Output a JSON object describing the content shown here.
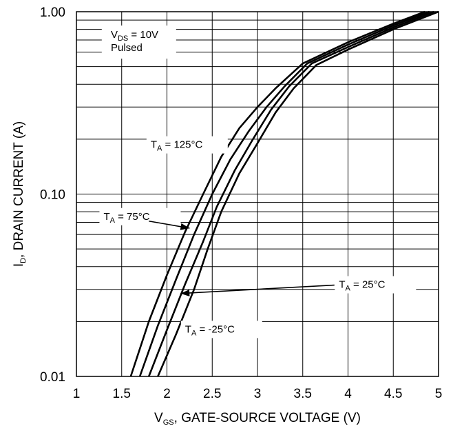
{
  "chart_data": {
    "type": "line",
    "xlabel": {
      "main": "V",
      "sub": "GS",
      "rest": ", GATE-SOURCE VOLTAGE (V)"
    },
    "ylabel": {
      "main": "I",
      "sub": "D",
      "rest": ", DRAIN CURRENT (A)"
    },
    "xlim": [
      1,
      5
    ],
    "ylim": [
      0.01,
      1.0
    ],
    "yscale": "log",
    "grid": true,
    "x_ticks": [
      1,
      1.5,
      2,
      2.5,
      3,
      3.5,
      4,
      4.5,
      5
    ],
    "x_tick_labels": [
      "1",
      "1.5",
      "2",
      "2.5",
      "3",
      "3.5",
      "4",
      "4.5",
      "5"
    ],
    "y_ticks": [
      0.01,
      0.1,
      1.0
    ],
    "y_tick_labels": [
      "0.01",
      "0.10",
      "1.00"
    ],
    "conditions": [
      {
        "main": "V",
        "sub": "DS",
        "rest": " = 10V"
      },
      {
        "main": "Pulsed",
        "sub": "",
        "rest": ""
      }
    ],
    "series": [
      {
        "name": {
          "main": "T",
          "sub": "A",
          "rest": " = 125°C"
        },
        "points": [
          [
            1.6,
            0.01
          ],
          [
            1.8,
            0.02
          ],
          [
            2.0,
            0.036
          ],
          [
            2.2,
            0.062
          ],
          [
            2.4,
            0.1
          ],
          [
            2.6,
            0.16
          ],
          [
            2.8,
            0.23
          ],
          [
            3.0,
            0.3
          ],
          [
            3.2,
            0.38
          ],
          [
            3.5,
            0.52
          ],
          [
            4.0,
            0.68
          ],
          [
            4.5,
            0.86
          ],
          [
            4.85,
            1.0
          ]
        ]
      },
      {
        "name": {
          "main": "T",
          "sub": "A",
          "rest": " = 75°C"
        },
        "points": [
          [
            1.7,
            0.01
          ],
          [
            1.9,
            0.019
          ],
          [
            2.1,
            0.034
          ],
          [
            2.3,
            0.06
          ],
          [
            2.5,
            0.1
          ],
          [
            2.7,
            0.155
          ],
          [
            2.9,
            0.22
          ],
          [
            3.1,
            0.3
          ],
          [
            3.3,
            0.39
          ],
          [
            3.55,
            0.52
          ],
          [
            4.0,
            0.66
          ],
          [
            4.5,
            0.84
          ],
          [
            4.9,
            1.0
          ]
        ]
      },
      {
        "name": {
          "main": "T",
          "sub": "A",
          "rest": " = 25°C"
        },
        "points": [
          [
            1.8,
            0.01
          ],
          [
            2.0,
            0.018
          ],
          [
            2.2,
            0.032
          ],
          [
            2.4,
            0.055
          ],
          [
            2.55,
            0.085
          ],
          [
            2.75,
            0.135
          ],
          [
            2.95,
            0.2
          ],
          [
            3.15,
            0.29
          ],
          [
            3.35,
            0.39
          ],
          [
            3.6,
            0.52
          ],
          [
            4.0,
            0.64
          ],
          [
            4.5,
            0.82
          ],
          [
            4.95,
            1.0
          ]
        ]
      },
      {
        "name": {
          "main": "T",
          "sub": "A",
          "rest": " = -25°C"
        },
        "points": [
          [
            1.9,
            0.01
          ],
          [
            2.1,
            0.017
          ],
          [
            2.3,
            0.03
          ],
          [
            2.45,
            0.05
          ],
          [
            2.6,
            0.08
          ],
          [
            2.8,
            0.13
          ],
          [
            3.0,
            0.19
          ],
          [
            3.2,
            0.28
          ],
          [
            3.4,
            0.38
          ],
          [
            3.65,
            0.51
          ],
          [
            4.0,
            0.62
          ],
          [
            4.5,
            0.8
          ],
          [
            5.0,
            1.0
          ]
        ]
      }
    ]
  }
}
